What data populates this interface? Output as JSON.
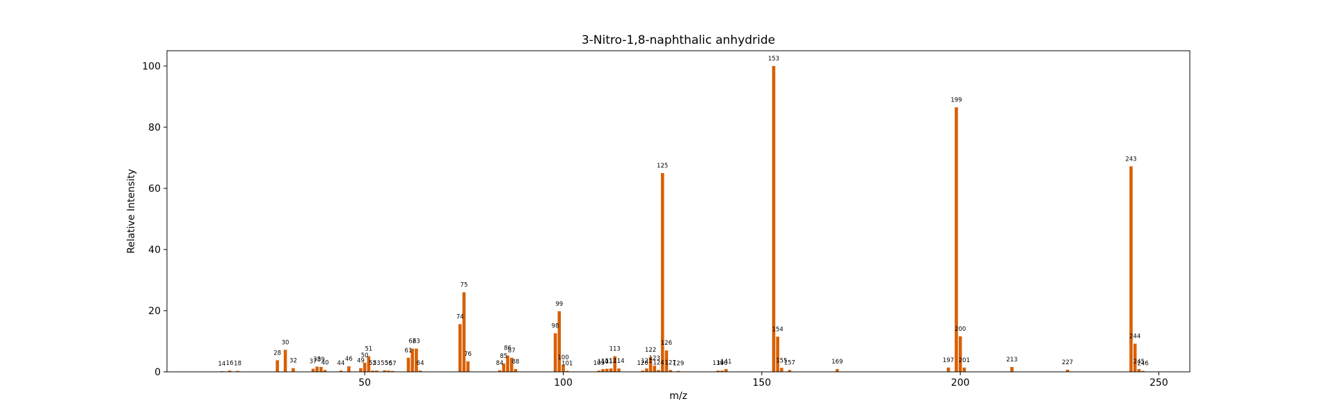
{
  "chart_data": {
    "type": "bar",
    "title": "3-Nitro-1,8-naphthalic anhydride",
    "xlabel": "m/z",
    "ylabel": "Relative Intensity",
    "xlim": [
      0.2,
      257.8
    ],
    "ylim": [
      0,
      105
    ],
    "xticks": [
      50,
      100,
      150,
      200,
      250
    ],
    "yticks": [
      0,
      20,
      40,
      60,
      80,
      100
    ],
    "grid": false,
    "bar_color": "#d95f02",
    "peaks": [
      {
        "x": 14,
        "y": 0.2
      },
      {
        "x": 16,
        "y": 0.4
      },
      {
        "x": 18,
        "y": 0.3
      },
      {
        "x": 28,
        "y": 3.8
      },
      {
        "x": 30,
        "y": 7.2
      },
      {
        "x": 32,
        "y": 1.2
      },
      {
        "x": 37,
        "y": 1.0
      },
      {
        "x": 38,
        "y": 1.7
      },
      {
        "x": 39,
        "y": 1.6
      },
      {
        "x": 40,
        "y": 0.6
      },
      {
        "x": 44,
        "y": 0.4
      },
      {
        "x": 46,
        "y": 1.8
      },
      {
        "x": 49,
        "y": 1.2
      },
      {
        "x": 50,
        "y": 3.0
      },
      {
        "x": 51,
        "y": 5.1
      },
      {
        "x": 52,
        "y": 0.4
      },
      {
        "x": 53,
        "y": 0.4
      },
      {
        "x": 55,
        "y": 0.5
      },
      {
        "x": 56,
        "y": 0.4
      },
      {
        "x": 57,
        "y": 0.3
      },
      {
        "x": 61,
        "y": 4.6
      },
      {
        "x": 62,
        "y": 7.6
      },
      {
        "x": 63,
        "y": 7.6
      },
      {
        "x": 64,
        "y": 0.4
      },
      {
        "x": 74,
        "y": 15.6
      },
      {
        "x": 75,
        "y": 26.0
      },
      {
        "x": 76,
        "y": 3.4
      },
      {
        "x": 84,
        "y": 0.5
      },
      {
        "x": 85,
        "y": 2.7
      },
      {
        "x": 86,
        "y": 5.3
      },
      {
        "x": 87,
        "y": 4.6
      },
      {
        "x": 88,
        "y": 0.9
      },
      {
        "x": 98,
        "y": 12.6
      },
      {
        "x": 99,
        "y": 19.8
      },
      {
        "x": 100,
        "y": 2.3
      },
      {
        "x": 101,
        "y": 0.3
      },
      {
        "x": 109,
        "y": 0.4
      },
      {
        "x": 110,
        "y": 0.9
      },
      {
        "x": 111,
        "y": 1.0
      },
      {
        "x": 112,
        "y": 1.1
      },
      {
        "x": 113,
        "y": 5.1
      },
      {
        "x": 114,
        "y": 1.1
      },
      {
        "x": 120,
        "y": 0.4
      },
      {
        "x": 121,
        "y": 1.1
      },
      {
        "x": 122,
        "y": 4.8
      },
      {
        "x": 123,
        "y": 2.0
      },
      {
        "x": 124,
        "y": 0.6
      },
      {
        "x": 125,
        "y": 65.0
      },
      {
        "x": 126,
        "y": 7.0
      },
      {
        "x": 127,
        "y": 0.6
      },
      {
        "x": 129,
        "y": 0.3
      },
      {
        "x": 139,
        "y": 0.4
      },
      {
        "x": 140,
        "y": 0.4
      },
      {
        "x": 141,
        "y": 0.9
      },
      {
        "x": 153,
        "y": 100.0
      },
      {
        "x": 154,
        "y": 11.5
      },
      {
        "x": 155,
        "y": 1.3
      },
      {
        "x": 157,
        "y": 0.6
      },
      {
        "x": 169,
        "y": 0.9
      },
      {
        "x": 197,
        "y": 1.4
      },
      {
        "x": 199,
        "y": 86.5
      },
      {
        "x": 200,
        "y": 11.6
      },
      {
        "x": 201,
        "y": 1.4
      },
      {
        "x": 213,
        "y": 1.6
      },
      {
        "x": 227,
        "y": 0.7
      },
      {
        "x": 243,
        "y": 67.2
      },
      {
        "x": 244,
        "y": 9.2
      },
      {
        "x": 245,
        "y": 0.9
      },
      {
        "x": 246,
        "y": 0.3
      }
    ]
  }
}
